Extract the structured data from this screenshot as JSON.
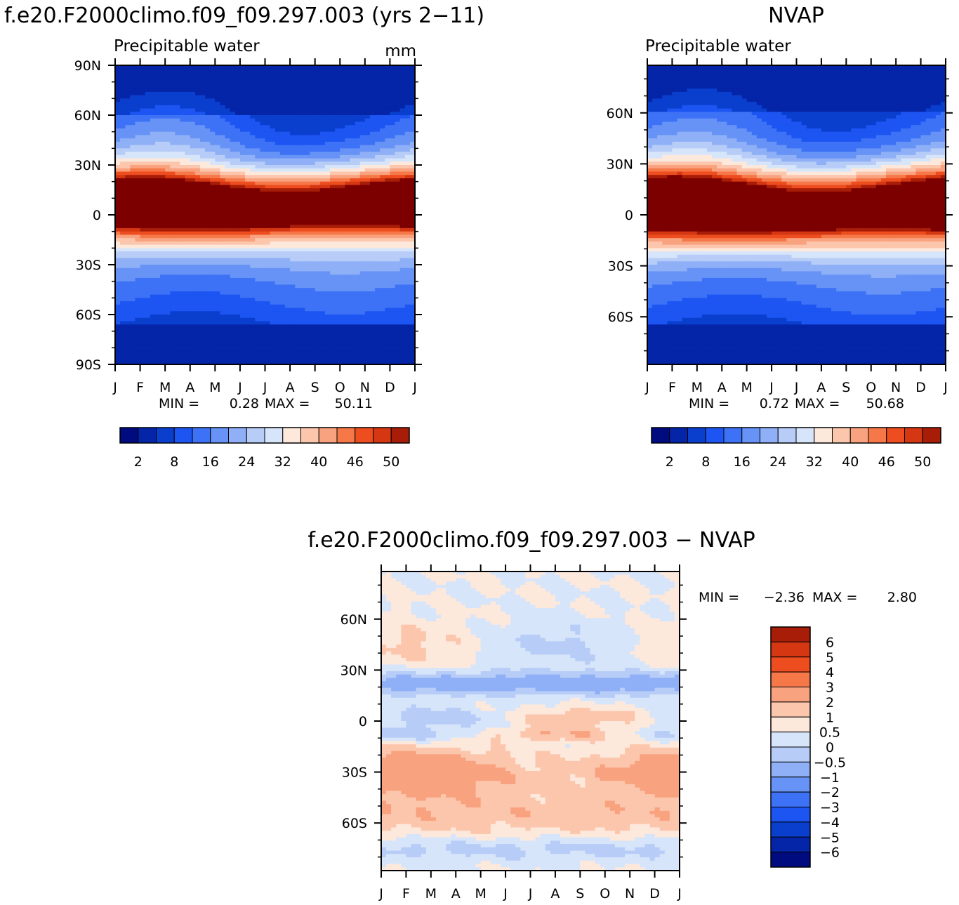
{
  "chart_data": [
    {
      "type": "heatmap",
      "title": "f.e20.F2000climo.f09_f09.297.003 (yrs 2−11)",
      "subtitle": "Precipitable water",
      "units": "mm",
      "x_ticks": [
        "J",
        "F",
        "M",
        "A",
        "M",
        "J",
        "J",
        "A",
        "S",
        "O",
        "N",
        "D",
        "J"
      ],
      "y_ticks": [
        "90N",
        "60N",
        "30N",
        "0",
        "30S",
        "60S",
        "90S"
      ],
      "y_tick_values": [
        90,
        60,
        30,
        0,
        -30,
        -60,
        -90
      ],
      "ylim": [
        -90,
        90
      ],
      "min_label": "MIN =",
      "min": "0.28",
      "max_label": "MAX =",
      "max": "50.11",
      "colorbar_labels": [
        "2",
        "8",
        "16",
        "24",
        "32",
        "40",
        "46",
        "50"
      ],
      "colorbar_levels": [
        2,
        5,
        8,
        12,
        16,
        20,
        24,
        28,
        32,
        36,
        40,
        43,
        46,
        48,
        50
      ],
      "max_value_approx": 50.11,
      "min_value_approx": 0.28,
      "max_location": {
        "month": 7.3,
        "lat": 7
      }
    },
    {
      "type": "heatmap",
      "title": "NVAP",
      "subtitle": "Precipitable water",
      "x_ticks": [
        "J",
        "F",
        "M",
        "A",
        "M",
        "J",
        "J",
        "A",
        "S",
        "O",
        "N",
        "D",
        "J"
      ],
      "y_ticks": [
        "60N",
        "30N",
        "0",
        "30S",
        "60S"
      ],
      "y_tick_values": [
        60,
        30,
        0,
        -30,
        -60
      ],
      "ylim": [
        -88,
        88
      ],
      "min_label": "MIN =",
      "min": "0.72",
      "max_label": "MAX =",
      "max": "50.68",
      "colorbar_labels": [
        "2",
        "8",
        "16",
        "24",
        "32",
        "40",
        "46",
        "50"
      ],
      "colorbar_levels": [
        2,
        5,
        8,
        12,
        16,
        20,
        24,
        28,
        32,
        36,
        40,
        43,
        46,
        48,
        50
      ],
      "max_value_approx": 50.68,
      "min_value_approx": 0.72,
      "max_location": {
        "month": 4.2,
        "lat": 5
      }
    },
    {
      "type": "heatmap",
      "title": "f.e20.F2000climo.f09_f09.297.003 − NVAP",
      "x_ticks": [
        "J",
        "F",
        "M",
        "A",
        "M",
        "J",
        "J",
        "A",
        "S",
        "O",
        "N",
        "D",
        "J"
      ],
      "y_ticks": [
        "60N",
        "30N",
        "0",
        "30S",
        "60S"
      ],
      "y_tick_values": [
        60,
        30,
        0,
        -30,
        -60
      ],
      "ylim": [
        -88,
        88
      ],
      "min_label": "MIN =",
      "min": "−2.36",
      "max_label": "MAX =",
      "max": "2.80",
      "colorbar_labels": [
        "6",
        "5",
        "4",
        "3",
        "2",
        "1",
        "0.5",
        "0",
        "−0.5",
        "−1",
        "−2",
        "−3",
        "−4",
        "−5",
        "−6"
      ],
      "colorbar_levels": [
        -6,
        -5,
        -4,
        -3,
        -2,
        -1,
        -0.5,
        0,
        0.5,
        1,
        2,
        3,
        4,
        5,
        6
      ]
    }
  ],
  "colors": {
    "abs_scale": [
      "#000b80",
      "#0525a8",
      "#0a3fce",
      "#1d55f2",
      "#3e72f6",
      "#6693f5",
      "#8fb0f6",
      "#b7cdf7",
      "#d7e5fa",
      "#fde8dc",
      "#fcc6ad",
      "#f9a27f",
      "#f67848",
      "#ed4d1f",
      "#d43712",
      "#a81d08",
      "#7c0000"
    ],
    "diff_scale": [
      "#000b80",
      "#0525a8",
      "#0a3fce",
      "#1d55f2",
      "#3e72f6",
      "#6693f5",
      "#8fb0f6",
      "#b7cdf7",
      "#d7e5fa",
      "#fde8dc",
      "#fcc6ad",
      "#f9a27f",
      "#f67848",
      "#ed4d1f",
      "#d43712",
      "#a81d08",
      "#7c0000"
    ]
  }
}
